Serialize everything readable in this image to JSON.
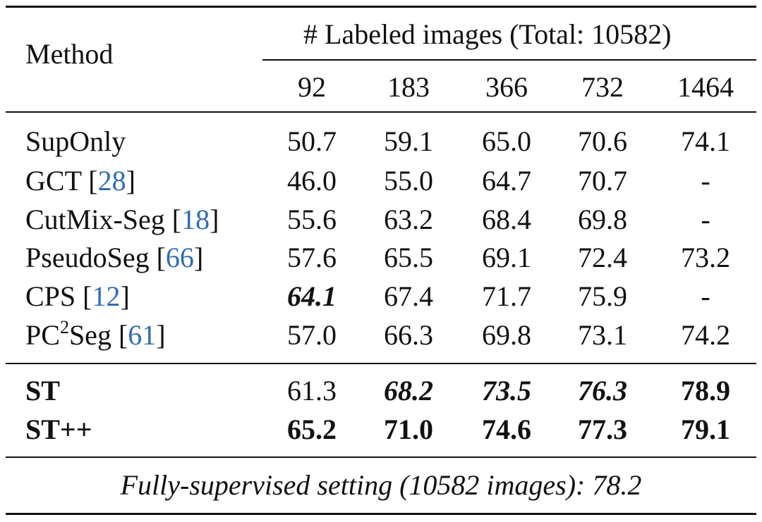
{
  "header": {
    "method_label": "Method",
    "group_label": "# Labeled images (Total: 10582)",
    "columns": [
      "92",
      "183",
      "366",
      "732",
      "1464"
    ]
  },
  "rows": [
    {
      "method": "SupOnly",
      "ref": "",
      "values": [
        "50.7",
        "59.1",
        "65.0",
        "70.6",
        "74.1"
      ]
    },
    {
      "method": "GCT",
      "ref": "28",
      "values": [
        "46.0",
        "55.0",
        "64.7",
        "70.7",
        "-"
      ]
    },
    {
      "method": "CutMix-Seg",
      "ref": "18",
      "values": [
        "55.6",
        "63.2",
        "68.4",
        "69.8",
        "-"
      ]
    },
    {
      "method": "PseudoSeg",
      "ref": "66",
      "values": [
        "57.6",
        "65.5",
        "69.1",
        "72.4",
        "73.2"
      ]
    },
    {
      "method": "CPS",
      "ref": "12",
      "values": [
        "64.1",
        "67.4",
        "71.7",
        "75.9",
        "-"
      ]
    },
    {
      "method": "PC",
      "method_sup": "2",
      "method_suffix": "Seg",
      "ref": "61",
      "values": [
        "57.0",
        "66.3",
        "69.8",
        "73.1",
        "74.2"
      ]
    }
  ],
  "ours": [
    {
      "method": "ST",
      "values": [
        "61.3",
        "68.2",
        "73.5",
        "76.3",
        "78.9"
      ]
    },
    {
      "method": "ST++",
      "values": [
        "65.2",
        "71.0",
        "74.6",
        "77.3",
        "79.1"
      ]
    }
  ],
  "footer": "Fully-supervised setting (10582 images): 78.2"
}
